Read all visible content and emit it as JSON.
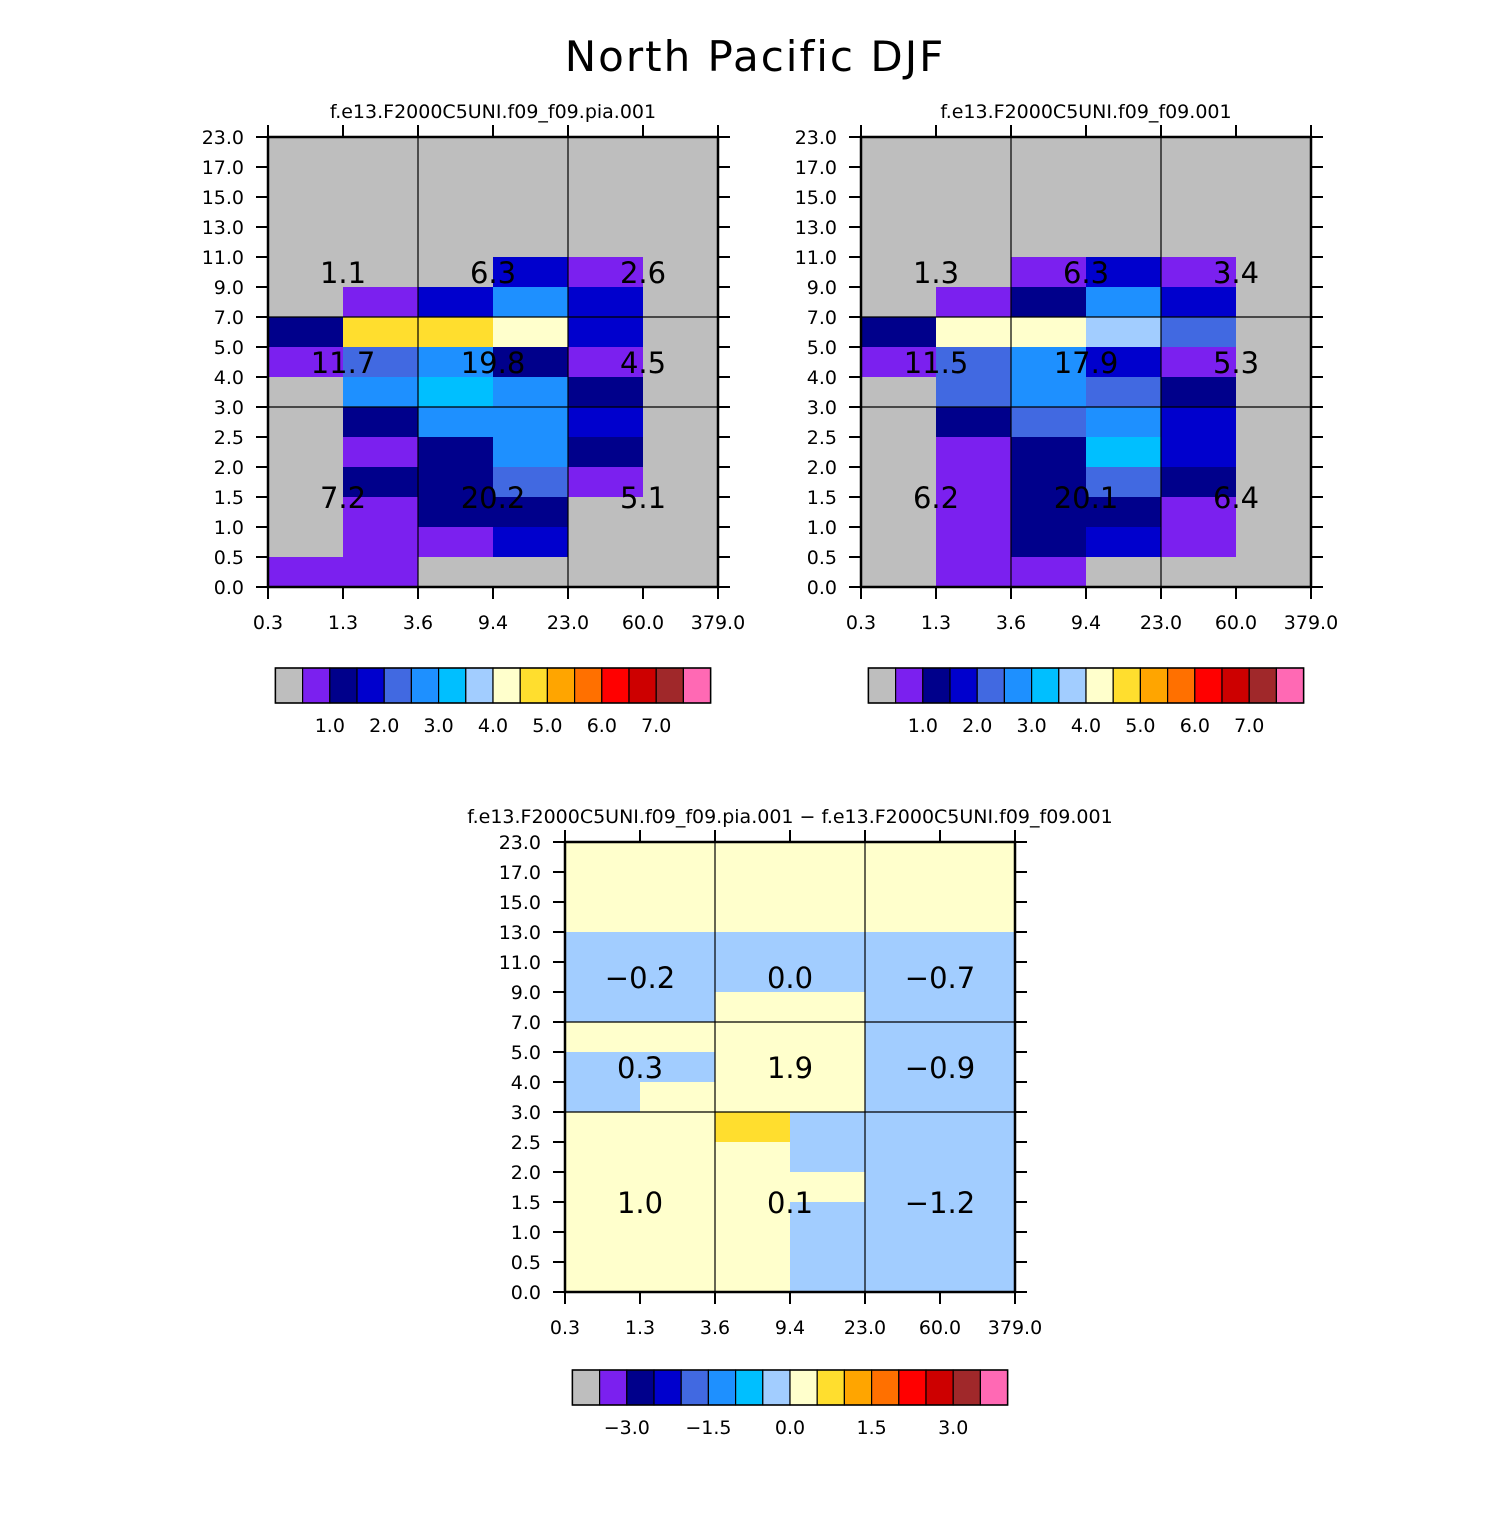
{
  "page_title": "North Pacific DJF",
  "colors": {
    "palette": [
      "#BEBEBE",
      "#7B20EF",
      "#00008B",
      "#0000CD",
      "#4169E1",
      "#1E90FF",
      "#00BFFF",
      "#A2CDFF",
      "#FFFFCC",
      "#FFDE2E",
      "#FFA500",
      "#FF7000",
      "#FF0000",
      "#CD0000",
      "#A0282A",
      "#FF69B4"
    ],
    "grid_line": "#000000",
    "background": "#FFFFFF"
  },
  "chart_data": [
    {
      "type": "heatmap",
      "title": "f.e13.F2000C5UNI.f09_f09.pia.001",
      "x_tick_labels": [
        "0.3",
        "1.3",
        "3.6",
        "9.4",
        "23.0",
        "60.0",
        "379.0"
      ],
      "y_tick_labels": [
        "0.0",
        "0.5",
        "1.0",
        "1.5",
        "2.0",
        "2.5",
        "3.0",
        "4.0",
        "5.0",
        "7.0",
        "9.0",
        "11.0",
        "13.0",
        "15.0",
        "17.0",
        "23.0"
      ],
      "cells_color_index": [
        [
          1,
          1,
          0,
          0,
          0,
          0
        ],
        [
          0,
          1,
          1,
          3,
          0,
          0
        ],
        [
          0,
          1,
          2,
          2,
          0,
          0
        ],
        [
          0,
          2,
          2,
          4,
          1,
          0
        ],
        [
          0,
          1,
          2,
          5,
          2,
          0
        ],
        [
          0,
          2,
          5,
          5,
          3,
          0
        ],
        [
          0,
          5,
          6,
          5,
          2,
          0
        ],
        [
          1,
          4,
          5,
          2,
          1,
          0
        ],
        [
          2,
          9,
          9,
          8,
          3,
          0
        ],
        [
          0,
          1,
          3,
          5,
          3,
          0
        ],
        [
          0,
          0,
          0,
          3,
          1,
          0
        ],
        [
          0,
          0,
          0,
          0,
          0,
          0
        ],
        [
          0,
          0,
          0,
          0,
          0,
          0
        ],
        [
          0,
          0,
          0,
          0,
          0,
          0
        ],
        [
          0,
          0,
          0,
          0,
          0,
          0
        ]
      ],
      "region_totals": {
        "low": [
          "7.2",
          "20.2",
          "5.1"
        ],
        "middle": [
          "11.7",
          "19.8",
          "4.5"
        ],
        "high": [
          "1.1",
          "6.3",
          "2.6"
        ]
      },
      "colorbar": {
        "colors": [
          "#BEBEBE",
          "#7B20EF",
          "#00008B",
          "#0000CD",
          "#4169E1",
          "#1E90FF",
          "#00BFFF",
          "#A2CDFF",
          "#FFFFCC",
          "#FFDE2E",
          "#FFA500",
          "#FF7000",
          "#FF0000",
          "#CD0000",
          "#A0282A",
          "#FF69B4"
        ],
        "labels": [
          "1.0",
          "2.0",
          "3.0",
          "4.0",
          "5.0",
          "6.0",
          "7.0"
        ]
      }
    },
    {
      "type": "heatmap",
      "title": "f.e13.F2000C5UNI.f09_f09.001",
      "x_tick_labels": [
        "0.3",
        "1.3",
        "3.6",
        "9.4",
        "23.0",
        "60.0",
        "379.0"
      ],
      "y_tick_labels": [
        "0.0",
        "0.5",
        "1.0",
        "1.5",
        "2.0",
        "2.5",
        "3.0",
        "4.0",
        "5.0",
        "7.0",
        "9.0",
        "11.0",
        "13.0",
        "15.0",
        "17.0",
        "23.0"
      ],
      "cells_color_index": [
        [
          0,
          1,
          1,
          0,
          0,
          0
        ],
        [
          0,
          1,
          2,
          3,
          1,
          0
        ],
        [
          0,
          1,
          2,
          2,
          1,
          0
        ],
        [
          0,
          1,
          2,
          4,
          2,
          0
        ],
        [
          0,
          1,
          2,
          6,
          3,
          0
        ],
        [
          0,
          2,
          4,
          5,
          3,
          0
        ],
        [
          0,
          4,
          5,
          4,
          2,
          0
        ],
        [
          1,
          4,
          5,
          3,
          1,
          0
        ],
        [
          2,
          8,
          8,
          7,
          4,
          0
        ],
        [
          0,
          1,
          2,
          5,
          3,
          0
        ],
        [
          0,
          0,
          1,
          3,
          1,
          0
        ],
        [
          0,
          0,
          0,
          0,
          0,
          0
        ],
        [
          0,
          0,
          0,
          0,
          0,
          0
        ],
        [
          0,
          0,
          0,
          0,
          0,
          0
        ],
        [
          0,
          0,
          0,
          0,
          0,
          0
        ]
      ],
      "region_totals": {
        "low": [
          "6.2",
          "20.1",
          "6.4"
        ],
        "middle": [
          "11.5",
          "17.9",
          "5.3"
        ],
        "high": [
          "1.3",
          "6.3",
          "3.4"
        ]
      },
      "colorbar": {
        "colors": [
          "#BEBEBE",
          "#7B20EF",
          "#00008B",
          "#0000CD",
          "#4169E1",
          "#1E90FF",
          "#00BFFF",
          "#A2CDFF",
          "#FFFFCC",
          "#FFDE2E",
          "#FFA500",
          "#FF7000",
          "#FF0000",
          "#CD0000",
          "#A0282A",
          "#FF69B4"
        ],
        "labels": [
          "1.0",
          "2.0",
          "3.0",
          "4.0",
          "5.0",
          "6.0",
          "7.0"
        ]
      }
    },
    {
      "type": "heatmap",
      "title": "f.e13.F2000C5UNI.f09_f09.pia.001 − f.e13.F2000C5UNI.f09_f09.001",
      "x_tick_labels": [
        "0.3",
        "1.3",
        "3.6",
        "9.4",
        "23.0",
        "60.0",
        "379.0"
      ],
      "y_tick_labels": [
        "0.0",
        "0.5",
        "1.0",
        "1.5",
        "2.0",
        "2.5",
        "3.0",
        "4.0",
        "5.0",
        "7.0",
        "9.0",
        "11.0",
        "13.0",
        "15.0",
        "17.0",
        "23.0"
      ],
      "cells_color_index": [
        [
          8,
          8,
          8,
          7,
          7,
          7
        ],
        [
          8,
          8,
          8,
          7,
          7,
          7
        ],
        [
          8,
          8,
          8,
          7,
          7,
          7
        ],
        [
          8,
          8,
          8,
          8,
          7,
          7
        ],
        [
          8,
          8,
          8,
          7,
          7,
          7
        ],
        [
          8,
          8,
          9,
          7,
          7,
          7
        ],
        [
          7,
          8,
          8,
          8,
          7,
          7
        ],
        [
          7,
          7,
          8,
          8,
          7,
          7
        ],
        [
          8,
          8,
          8,
          8,
          7,
          7
        ],
        [
          7,
          7,
          8,
          8,
          7,
          7
        ],
        [
          7,
          7,
          7,
          7,
          7,
          7
        ],
        [
          7,
          7,
          7,
          7,
          7,
          7
        ],
        [
          8,
          8,
          8,
          8,
          8,
          8
        ],
        [
          8,
          8,
          8,
          8,
          8,
          8
        ],
        [
          8,
          8,
          8,
          8,
          8,
          8
        ]
      ],
      "region_totals": {
        "low": [
          "1.0",
          "0.1",
          "−1.2"
        ],
        "middle": [
          "0.3",
          "1.9",
          "−0.9"
        ],
        "high": [
          "−0.2",
          "0.0",
          "−0.7"
        ]
      },
      "colorbar": {
        "colors": [
          "#BEBEBE",
          "#7B20EF",
          "#00008B",
          "#0000CD",
          "#4169E1",
          "#1E90FF",
          "#00BFFF",
          "#A2CDFF",
          "#FFFFCC",
          "#FFDE2E",
          "#FFA500",
          "#FF7000",
          "#FF0000",
          "#CD0000",
          "#A0282A",
          "#FF69B4"
        ],
        "labels": [
          "−3.0",
          "−1.5",
          "0.0",
          "1.5",
          "3.0"
        ]
      }
    }
  ]
}
